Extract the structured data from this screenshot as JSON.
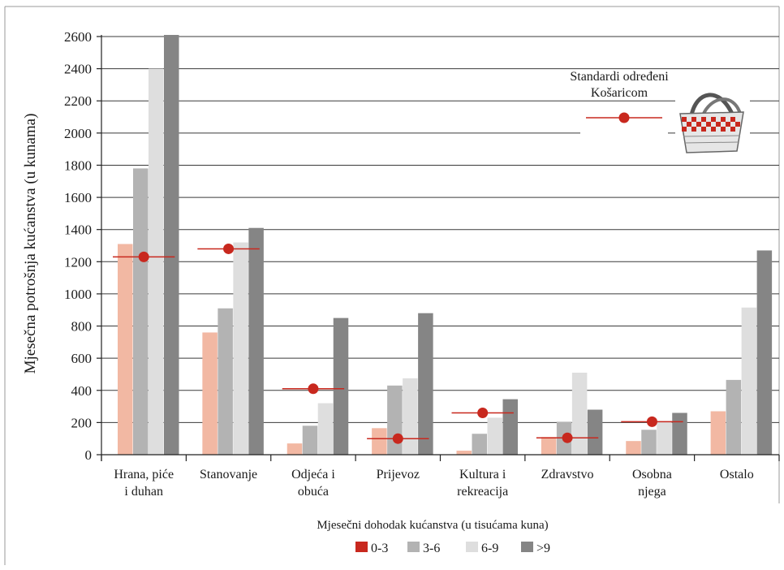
{
  "chart_data": {
    "type": "bar",
    "ylabel": "Mjesečna potrošnja kućanstva (u kunama)",
    "xlabel": "Mjesečni dohodak kućanstva (u tisućama kuna)",
    "ylim": [
      0,
      2600
    ],
    "yticks": [
      0,
      200,
      400,
      600,
      800,
      1000,
      1200,
      1400,
      1600,
      1800,
      2000,
      2200,
      2400,
      2600
    ],
    "grid": true,
    "legend_position": "bottom-center",
    "categories": [
      [
        "Hrana, piće",
        "i duhan"
      ],
      [
        "Stanovanje"
      ],
      [
        "Odjeća i",
        "obuća"
      ],
      [
        "Prijevoz"
      ],
      [
        "Kultura i",
        "rekreacija"
      ],
      [
        "Zdravstvo"
      ],
      [
        "Osobna",
        "njega"
      ],
      [
        "Ostalo"
      ]
    ],
    "series": [
      {
        "name": "0-3",
        "color": "#f2b8a3",
        "legend_color": "#c8281e",
        "values": [
          1310,
          760,
          70,
          165,
          25,
          110,
          85,
          270
        ]
      },
      {
        "name": "3-6",
        "color": "#b3b3b3",
        "legend_color": "#b3b3b3",
        "values": [
          1780,
          910,
          180,
          430,
          130,
          205,
          155,
          465
        ]
      },
      {
        "name": "6-9",
        "color": "#dedede",
        "legend_color": "#dedede",
        "values": [
          2400,
          1320,
          320,
          475,
          230,
          510,
          210,
          915
        ]
      },
      {
        "name": ">9",
        "color": "#858585",
        "legend_color": "#858585",
        "values": [
          2610,
          1410,
          850,
          880,
          345,
          280,
          260,
          1270
        ]
      }
    ],
    "standards": {
      "name": "Standardi određeni Košaricom",
      "label_lines": [
        "Standardi određeni",
        "Košaricom"
      ],
      "color": "#c8281e",
      "values": [
        1230,
        1280,
        410,
        100,
        260,
        105,
        205,
        null
      ]
    },
    "annotation_icon": "basket-icon"
  }
}
